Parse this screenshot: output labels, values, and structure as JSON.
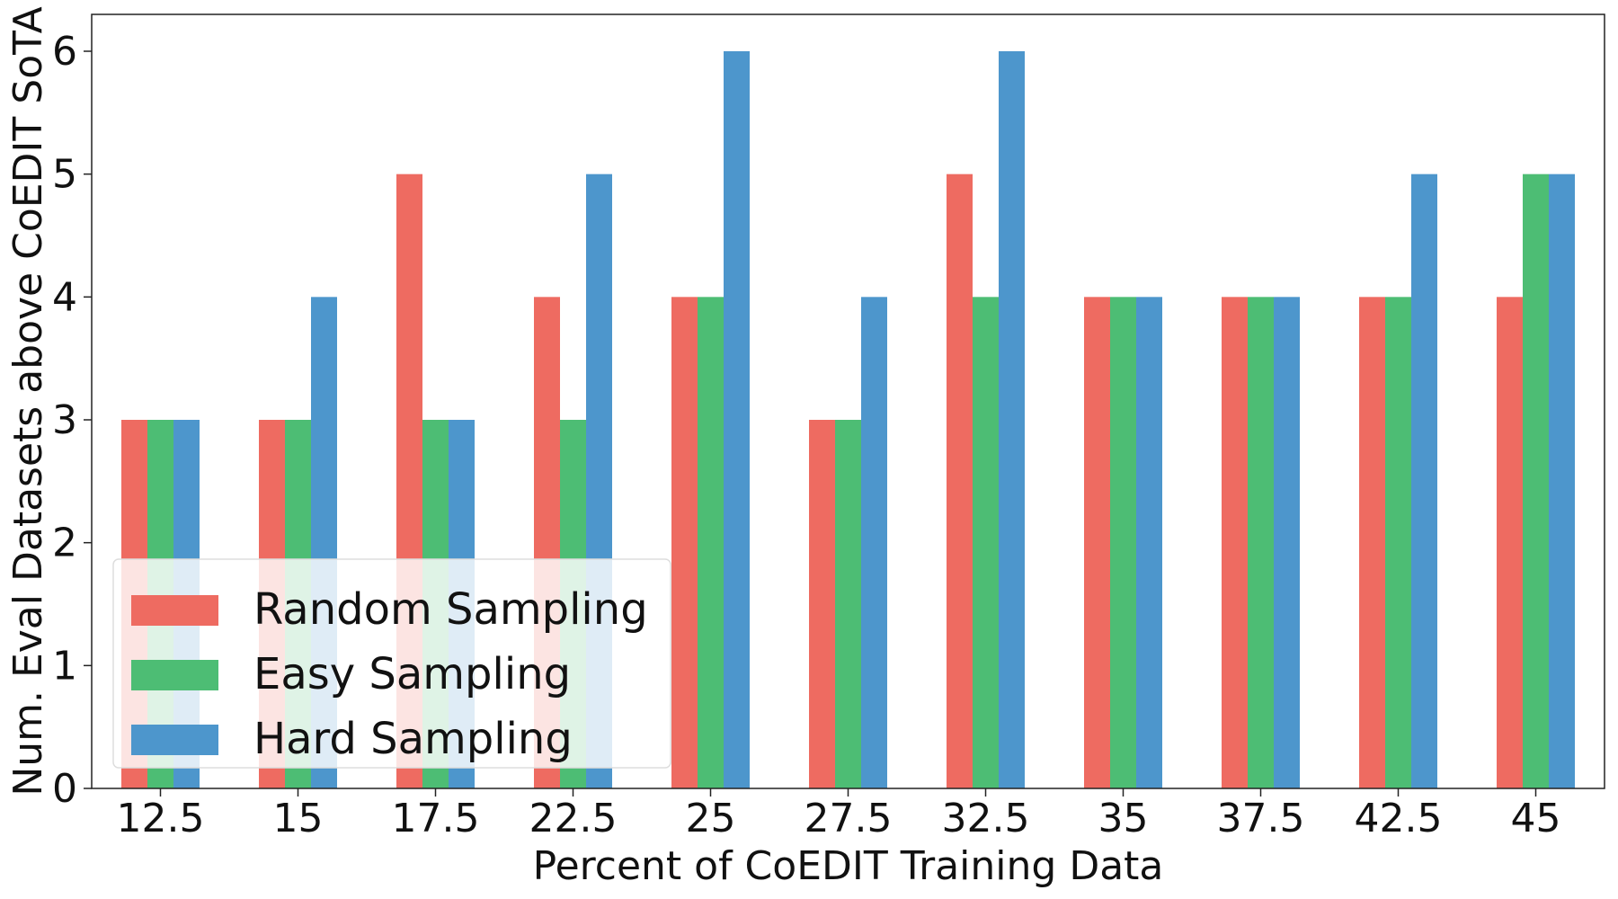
{
  "chart_data": {
    "type": "bar",
    "title": "",
    "xlabel": "Percent of CoEDIT Training Data",
    "ylabel": "Num. Eval Datasets above CoEDIT SoTA",
    "categories": [
      "12.5",
      "15",
      "17.5",
      "22.5",
      "25",
      "27.5",
      "32.5",
      "35",
      "37.5",
      "42.5",
      "45"
    ],
    "series": [
      {
        "name": "Random Sampling",
        "color": "#ee6b61",
        "values": [
          3,
          3,
          5,
          4,
          4,
          3,
          5,
          4,
          4,
          4,
          4
        ]
      },
      {
        "name": "Easy Sampling",
        "color": "#4dbd74",
        "values": [
          3,
          3,
          3,
          3,
          4,
          3,
          4,
          4,
          4,
          4,
          5
        ]
      },
      {
        "name": "Hard Sampling",
        "color": "#4d96cc",
        "values": [
          3,
          4,
          3,
          5,
          6,
          4,
          6,
          4,
          4,
          5,
          5
        ]
      }
    ],
    "ylim": [
      0,
      6.3
    ],
    "yticks": [
      "0",
      "1",
      "2",
      "3",
      "4",
      "5",
      "6"
    ],
    "grid": false,
    "legend_position": "lower-left"
  }
}
